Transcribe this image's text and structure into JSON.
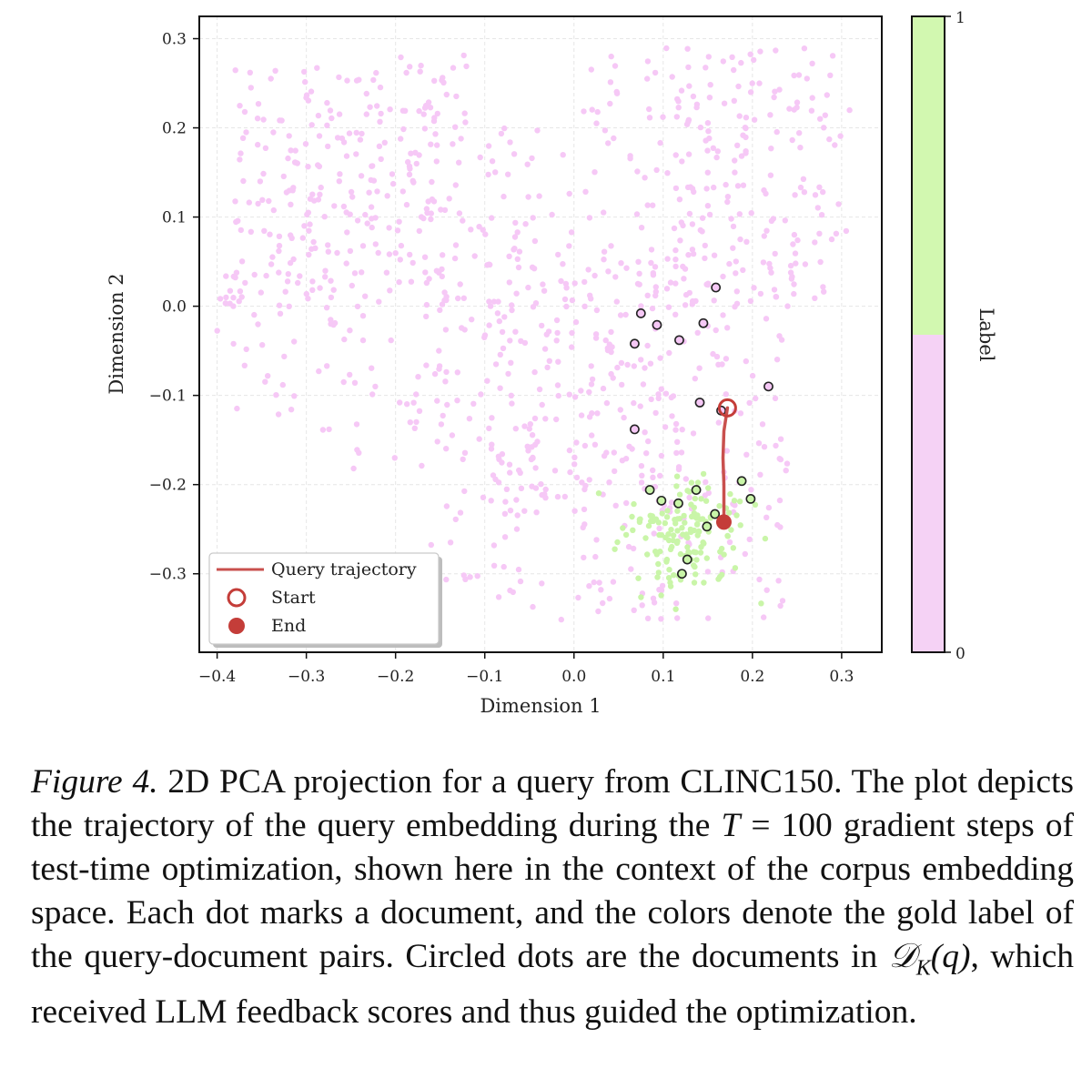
{
  "chart_data": {
    "type": "scatter",
    "xlabel": "Dimension 1",
    "ylabel": "Dimension 2",
    "xlim": [
      -0.42,
      0.345
    ],
    "ylim": [
      -0.388,
      0.325
    ],
    "xticks": [
      -0.4,
      -0.3,
      -0.2,
      -0.1,
      0.0,
      0.1,
      0.2,
      0.3
    ],
    "xtick_labels": [
      "−0.4",
      "−0.3",
      "−0.2",
      "−0.1",
      "0.0",
      "0.1",
      "0.2",
      "0.3"
    ],
    "yticks": [
      -0.3,
      -0.2,
      -0.1,
      0.0,
      0.1,
      0.2,
      0.3
    ],
    "ytick_labels": [
      "−0.3",
      "−0.2",
      "−0.1",
      "0.0",
      "0.1",
      "0.2",
      "0.3"
    ],
    "grid": true,
    "colors": {
      "label0": "#f6c8f6",
      "label1": "#c9f5a8",
      "trajectory": "#c9504e",
      "circle_edge": "#222222"
    },
    "colorbar": {
      "label": "Label",
      "min_label": "0",
      "max_label": "1",
      "split": 0.5
    },
    "legend": {
      "placement": "lower-left",
      "entries": [
        {
          "label": "Query trajectory",
          "marker": "line"
        },
        {
          "label": "Start",
          "marker": "open-circle"
        },
        {
          "label": "End",
          "marker": "filled-circle"
        }
      ]
    },
    "trajectory": {
      "start": [
        0.172,
        -0.114
      ],
      "end": [
        0.168,
        -0.242
      ],
      "path": [
        [
          0.172,
          -0.114
        ],
        [
          0.168,
          -0.14
        ],
        [
          0.167,
          -0.17
        ],
        [
          0.168,
          -0.2
        ],
        [
          0.168,
          -0.242
        ]
      ]
    },
    "circled_label0": [
      [
        0.075,
        -0.008
      ],
      [
        0.093,
        -0.021
      ],
      [
        0.159,
        0.021
      ],
      [
        0.145,
        -0.019
      ],
      [
        0.068,
        -0.042
      ],
      [
        0.118,
        -0.038
      ],
      [
        0.218,
        -0.09
      ],
      [
        0.141,
        -0.108
      ],
      [
        0.068,
        -0.138
      ],
      [
        0.165,
        -0.117
      ]
    ],
    "circled_label1": [
      [
        0.085,
        -0.206
      ],
      [
        0.098,
        -0.218
      ],
      [
        0.117,
        -0.221
      ],
      [
        0.137,
        -0.206
      ],
      [
        0.188,
        -0.196
      ],
      [
        0.198,
        -0.216
      ],
      [
        0.158,
        -0.233
      ],
      [
        0.149,
        -0.247
      ],
      [
        0.127,
        -0.284
      ],
      [
        0.121,
        -0.3
      ]
    ],
    "label1_region": {
      "x_center": 0.125,
      "y_center": -0.258,
      "x_spread": 0.045,
      "y_spread": 0.045,
      "count": 150
    },
    "label0_region": {
      "x_range": [
        -0.4,
        0.31
      ],
      "y_range": [
        -0.355,
        0.29
      ],
      "count": 1050
    }
  },
  "caption": {
    "fig_label": "Figure 4.",
    "text1": " 2D PCA projection for a query from CLINC150. The plot depicts the trajectory of the query embedding during the ",
    "math_T": "T",
    "text2": " = 100 gradient steps of test-time optimization, shown here in the context of the corpus embedding space. Each dot marks a document, and the colors denote the gold label of the query-document pairs. Circled dots are the documents in ",
    "math_D": "𝒟",
    "math_K": "K",
    "math_q": "(q)",
    "text3": ", which received LLM feedback scores and thus guided the optimization."
  }
}
